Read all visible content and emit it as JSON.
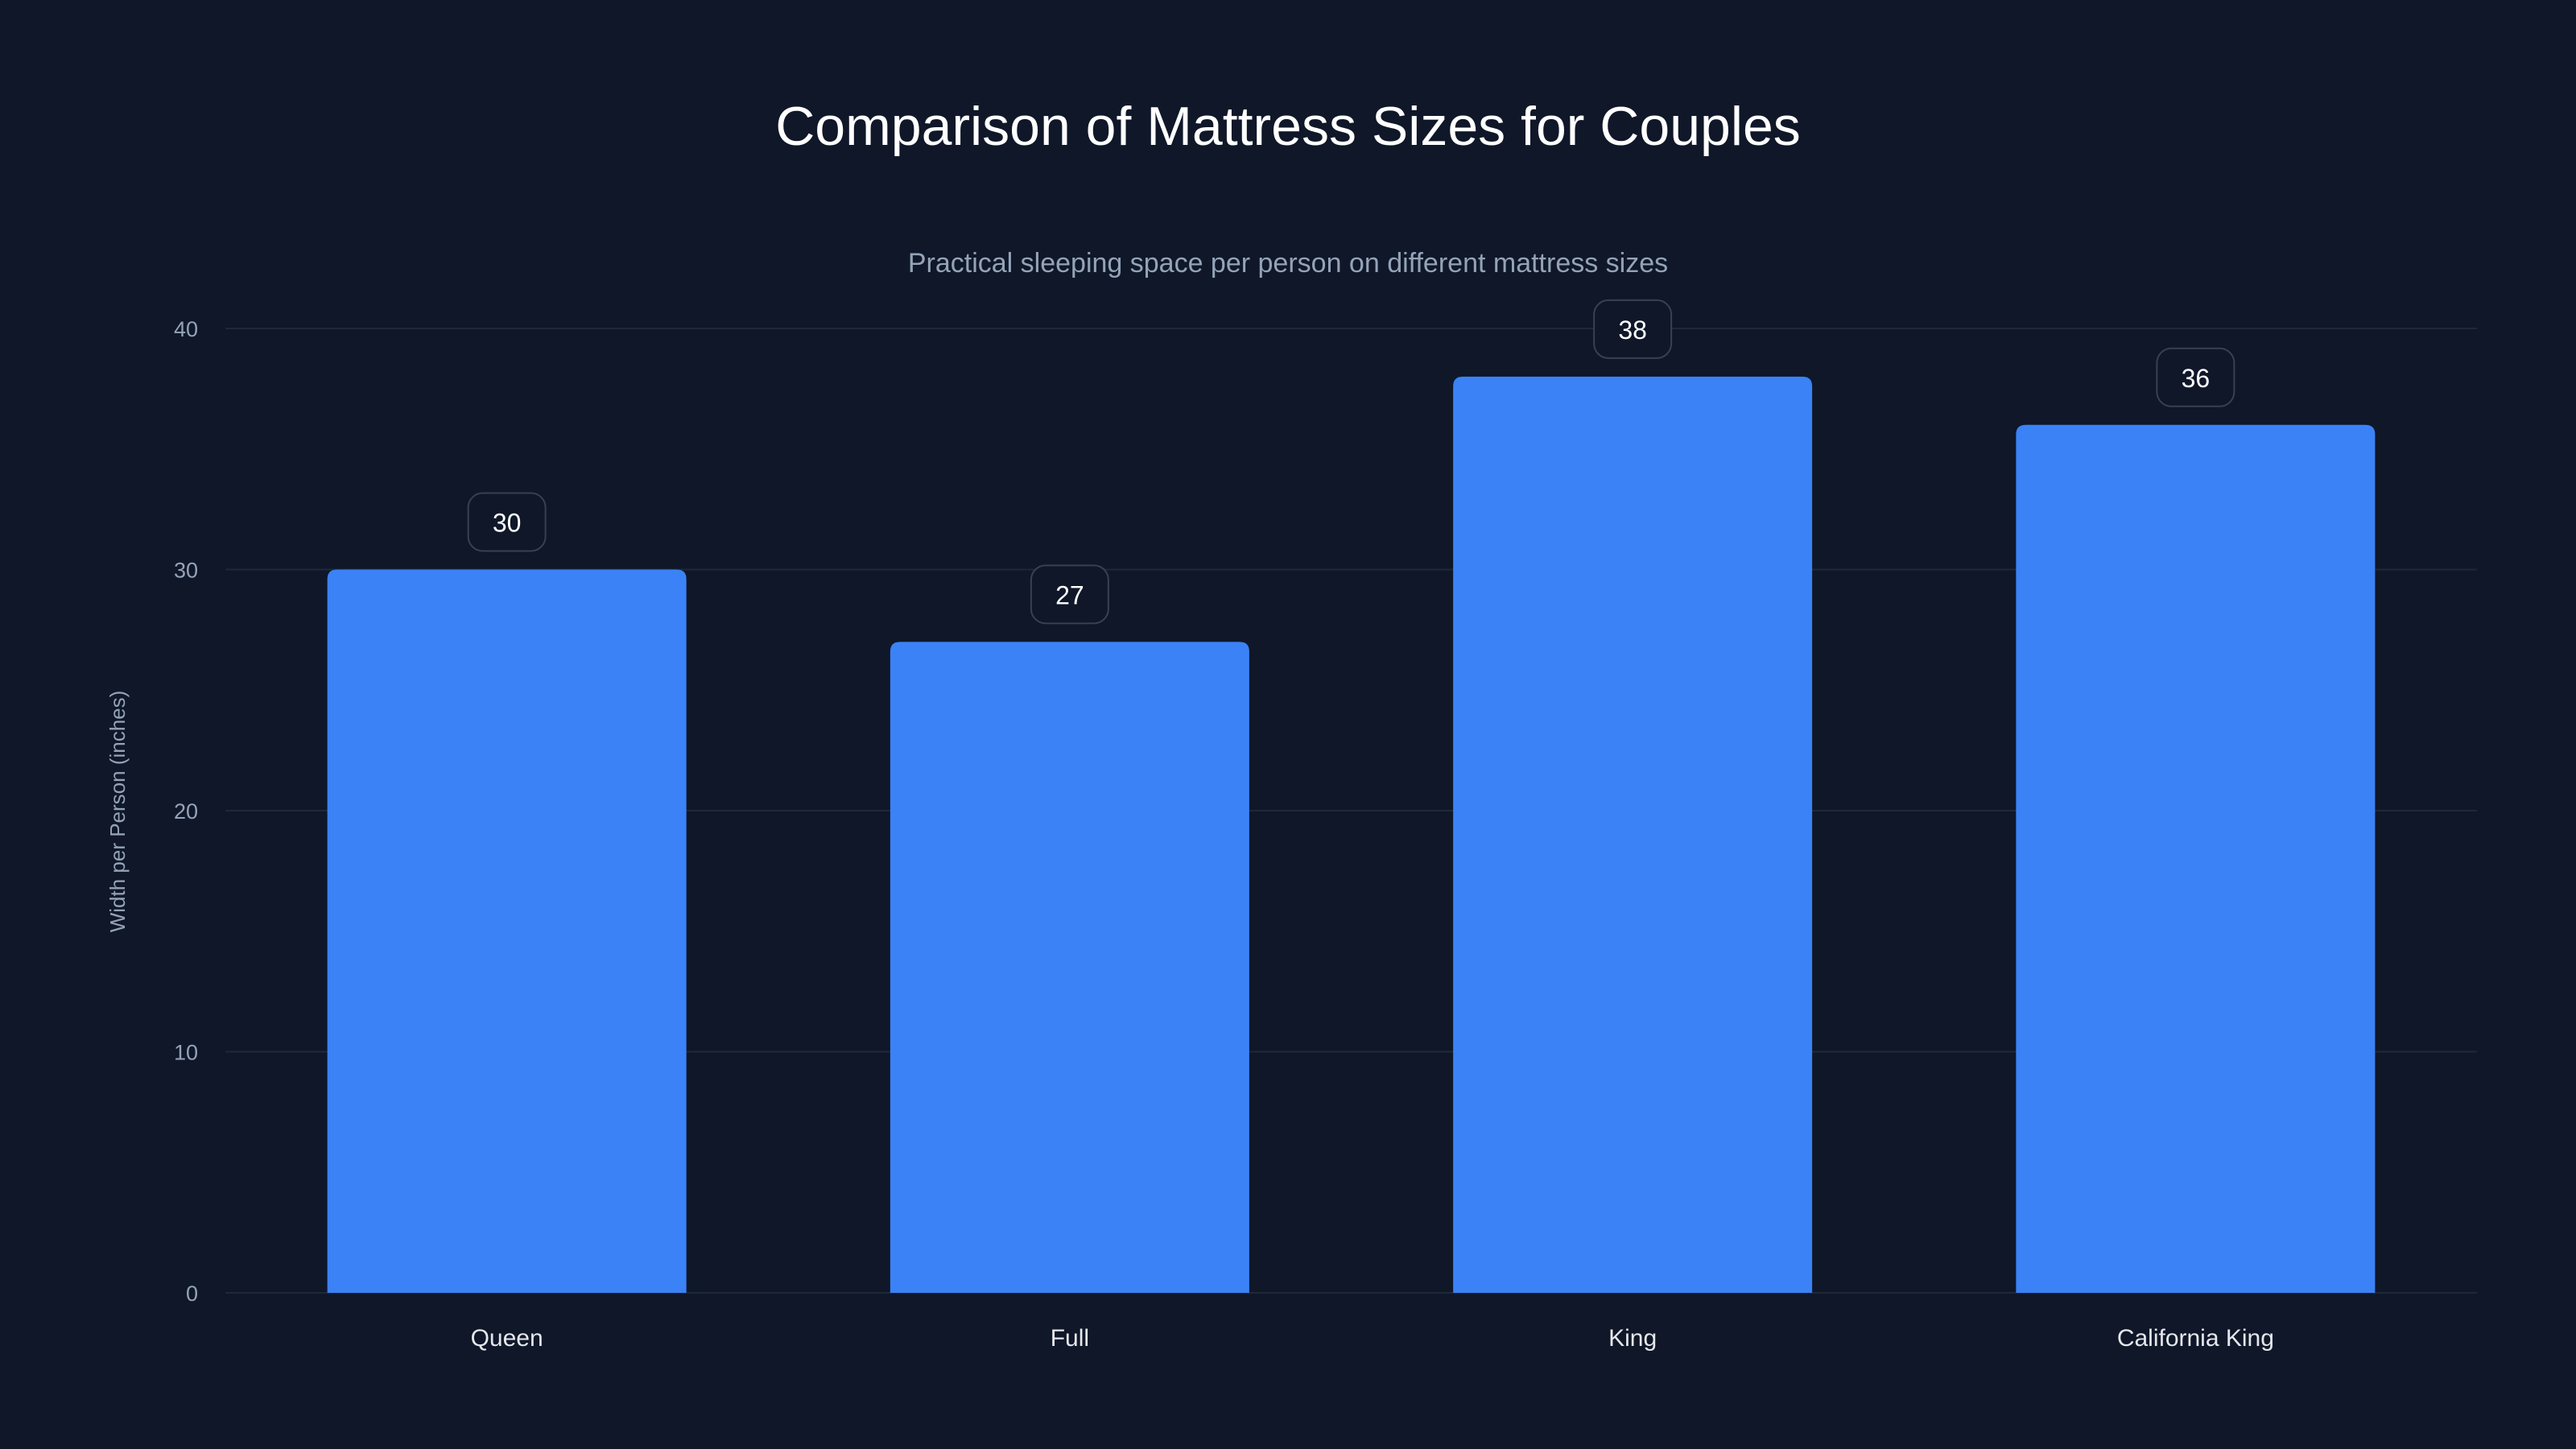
{
  "chart_data": {
    "type": "bar",
    "title": "Comparison of Mattress Sizes for Couples",
    "subtitle": "Practical sleeping space per person on different mattress sizes",
    "xlabel": "",
    "ylabel": "Width per Person (inches)",
    "categories": [
      "Queen",
      "Full",
      "King",
      "California King"
    ],
    "values": [
      30,
      27,
      38,
      36
    ],
    "data_labels": [
      "30",
      "27",
      "38",
      "36"
    ],
    "ylim": [
      0,
      40
    ],
    "yticks": [
      0,
      10,
      20,
      30,
      40
    ],
    "grid": true,
    "colors": {
      "bar": "#3b82f6",
      "background": "#0f1729",
      "grid": "#1f2937",
      "text": "#ffffff",
      "muted": "#94a3b8"
    }
  }
}
